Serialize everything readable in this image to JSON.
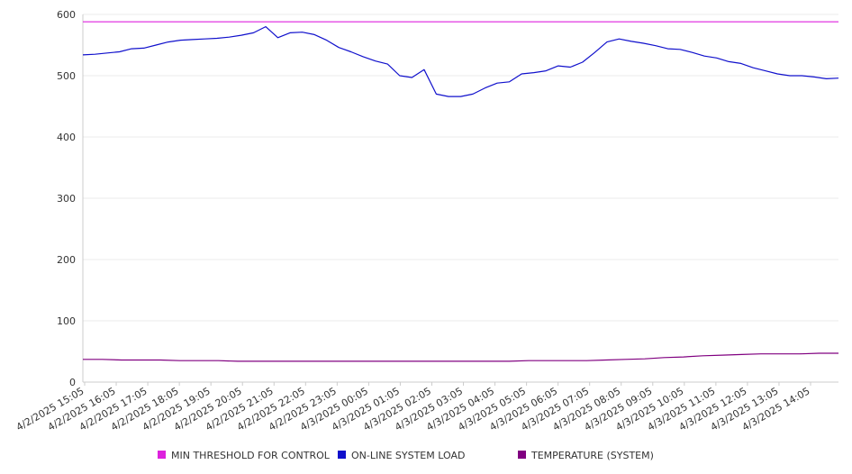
{
  "chart_data": {
    "type": "line",
    "title": "",
    "xlabel": "",
    "ylabel": "",
    "ylim": [
      0,
      600
    ],
    "y_ticks": [
      0,
      100,
      200,
      300,
      400,
      500,
      600
    ],
    "x_ticks": [
      "4/2/2025 15:05",
      "4/2/2025 16:05",
      "4/2/2025 17:05",
      "4/2/2025 18:05",
      "4/2/2025 19:05",
      "4/2/2025 20:05",
      "4/2/2025 21:05",
      "4/2/2025 22:05",
      "4/2/2025 23:05",
      "4/3/2025 00:05",
      "4/3/2025 01:05",
      "4/3/2025 02:05",
      "4/3/2025 03:05",
      "4/3/2025 04:05",
      "4/3/2025 05:05",
      "4/3/2025 06:05",
      "4/3/2025 07:05",
      "4/3/2025 08:05",
      "4/3/2025 09:05",
      "4/3/2025 10:05",
      "4/3/2025 11:05",
      "4/3/2025 12:05",
      "4/3/2025 13:05",
      "4/3/2025 14:05"
    ],
    "grid": "horizontal",
    "legend": "bottom",
    "series": [
      {
        "name": "MIN THRESHOLD FOR CONTROL",
        "color": "#dd22dd",
        "values": [
          588,
          588,
          588,
          588,
          588,
          588,
          588,
          588,
          588,
          588,
          588,
          588,
          588,
          588,
          588,
          588,
          588,
          588,
          588,
          588,
          588,
          588,
          588,
          588,
          588,
          588,
          588,
          588,
          588,
          588,
          588,
          588,
          588,
          588,
          588,
          588,
          588,
          588,
          588,
          588,
          588,
          588,
          588,
          588,
          588,
          588,
          588,
          588,
          588
        ]
      },
      {
        "name": "ON-LINE SYSTEM LOAD",
        "color": "#1010cc",
        "values": [
          534,
          535,
          537,
          539,
          544,
          545,
          550,
          555,
          558,
          559,
          560,
          561,
          563,
          566,
          570,
          580,
          562,
          570,
          571,
          567,
          558,
          546,
          539,
          531,
          524,
          519,
          500,
          497,
          510,
          470,
          466,
          466,
          470,
          480,
          488,
          490,
          503,
          505,
          508,
          516,
          514,
          522,
          538,
          555,
          560,
          556,
          553,
          549,
          544,
          543,
          538,
          532,
          529,
          523,
          520,
          513,
          508,
          503,
          500,
          500,
          498,
          495,
          496
        ]
      },
      {
        "name": "TEMPERATURE (SYSTEM)",
        "color": "#800080",
        "values": [
          37,
          37,
          36,
          36,
          36,
          35,
          35,
          35,
          34,
          34,
          34,
          34,
          34,
          34,
          34,
          34,
          34,
          34,
          34,
          34,
          34,
          34,
          34,
          35,
          35,
          35,
          35,
          36,
          37,
          38,
          40,
          41,
          43,
          44,
          45,
          46,
          46,
          46,
          47,
          47
        ]
      }
    ]
  }
}
